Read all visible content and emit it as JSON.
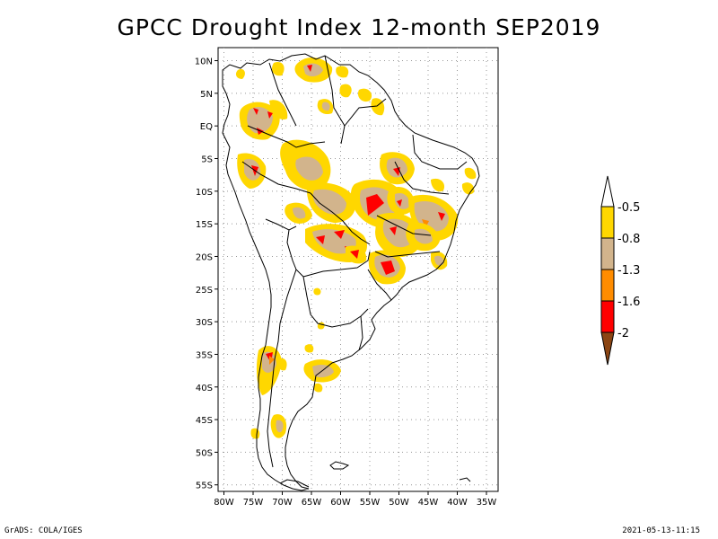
{
  "title": "GPCC Drought Index 12-month SEP2019",
  "map": {
    "lat_ticks": [
      {
        "value": 10,
        "label": "10N"
      },
      {
        "value": 5,
        "label": "5N"
      },
      {
        "value": 0,
        "label": "EQ"
      },
      {
        "value": -5,
        "label": "5S"
      },
      {
        "value": -10,
        "label": "10S"
      },
      {
        "value": -15,
        "label": "15S"
      },
      {
        "value": -20,
        "label": "20S"
      },
      {
        "value": -25,
        "label": "25S"
      },
      {
        "value": -30,
        "label": "30S"
      },
      {
        "value": -35,
        "label": "35S"
      },
      {
        "value": -40,
        "label": "40S"
      },
      {
        "value": -45,
        "label": "45S"
      },
      {
        "value": -50,
        "label": "50S"
      },
      {
        "value": -55,
        "label": "55S"
      }
    ],
    "lon_ticks": [
      {
        "value": -80,
        "label": "80W"
      },
      {
        "value": -75,
        "label": "75W"
      },
      {
        "value": -70,
        "label": "70W"
      },
      {
        "value": -65,
        "label": "65W"
      },
      {
        "value": -60,
        "label": "60W"
      },
      {
        "value": -55,
        "label": "55W"
      },
      {
        "value": -50,
        "label": "50W"
      },
      {
        "value": -45,
        "label": "45W"
      },
      {
        "value": -40,
        "label": "40W"
      },
      {
        "value": -35,
        "label": "35W"
      }
    ],
    "lat_range": [
      -56,
      12
    ],
    "lon_range": [
      -81,
      -33
    ],
    "grid": true
  },
  "legend": {
    "labels": [
      "-0.5",
      "-0.8",
      "-1.3",
      "-1.6",
      "-2"
    ],
    "colors": {
      "top_arrow": "#ffffff",
      "band1": "#ffd700",
      "band2": "#d2b48c",
      "band3": "#ff8c00",
      "band4": "#ff0000",
      "bottom_arrow": "#8b4513"
    }
  },
  "credits": {
    "left": "GrADS: COLA/IGES",
    "right": "2021-05-13-11:15"
  }
}
